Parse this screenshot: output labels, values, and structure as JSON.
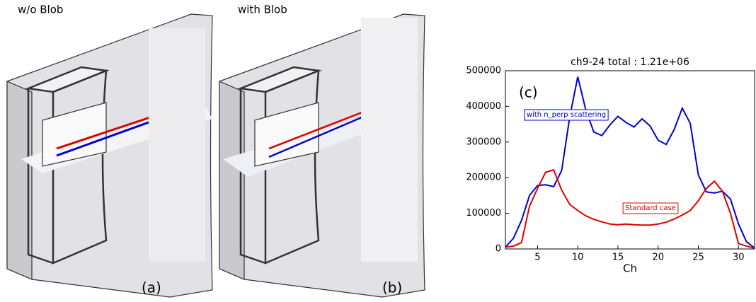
{
  "panels": [
    {
      "title": "w/o Blob",
      "label": "(a)"
    },
    {
      "title": "with Blob",
      "label": "(b)"
    }
  ],
  "chart_data": {
    "type": "line",
    "title": "ch9-24 total : 1.21e+06",
    "annotation": "(c)",
    "x_label": "Ch",
    "x": [
      1,
      2,
      3,
      4,
      5,
      6,
      7,
      8,
      9,
      10,
      11,
      12,
      13,
      14,
      15,
      16,
      17,
      18,
      19,
      20,
      21,
      22,
      23,
      24,
      25,
      26,
      27,
      28,
      29,
      30,
      31,
      32
    ],
    "series": [
      {
        "name": "with n_perp scattering",
        "color": "#0000dd",
        "values": [
          5000,
          30000,
          80000,
          150000,
          178000,
          180000,
          175000,
          220000,
          370000,
          483000,
          390000,
          328000,
          318000,
          348000,
          372000,
          355000,
          342000,
          365000,
          345000,
          305000,
          293000,
          335000,
          395000,
          352000,
          208000,
          160000,
          157000,
          162000,
          140000,
          70000,
          20000,
          3000
        ]
      },
      {
        "name": "Standard case",
        "color": "#dd0000",
        "values": [
          5000,
          8000,
          18000,
          120000,
          170000,
          215000,
          222000,
          165000,
          125000,
          108000,
          93000,
          83000,
          76000,
          70000,
          68000,
          70000,
          68000,
          67000,
          67000,
          70000,
          75000,
          84000,
          95000,
          108000,
          135000,
          170000,
          190000,
          162000,
          100000,
          15000,
          8000,
          2000
        ]
      }
    ],
    "xlim": [
      1,
      32
    ],
    "xticks": [
      5,
      10,
      15,
      20,
      25,
      30
    ],
    "ylim": [
      0,
      500000
    ],
    "yticks": [
      0,
      100000,
      200000,
      300000,
      400000,
      500000
    ]
  }
}
